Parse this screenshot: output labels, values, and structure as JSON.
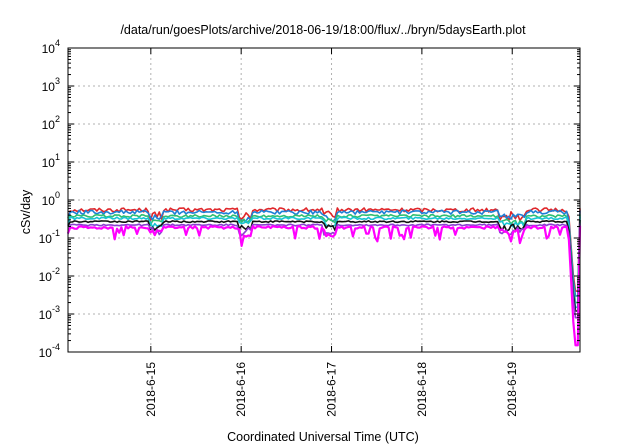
{
  "chart_data": {
    "type": "line",
    "title": "/data/run/goesPlots/archive/2018-06-19/18:00/flux/../bryn/5daysEarth.plot",
    "xlabel": "Coordinated Universal Time (UTC)",
    "ylabel": "cSv/day",
    "yscale": "log",
    "ylim": [
      0.0001,
      10000
    ],
    "xlim": [
      "2018-06-14 02:00",
      "2018-06-19 18:00"
    ],
    "grid": true,
    "legend": "none",
    "x_ticks": [
      "2018-6-15",
      "2018-6-16",
      "2018-6-17",
      "2018-6-18",
      "2018-6-19"
    ],
    "y_ticks": [
      {
        "base": "10",
        "exp": "-4"
      },
      {
        "base": "10",
        "exp": "-3"
      },
      {
        "base": "10",
        "exp": "-2"
      },
      {
        "base": "10",
        "exp": "-1"
      },
      {
        "base": "10",
        "exp": "0"
      },
      {
        "base": "10",
        "exp": "1"
      },
      {
        "base": "10",
        "exp": "2"
      },
      {
        "base": "10",
        "exp": "3"
      },
      {
        "base": "10",
        "exp": "4"
      }
    ],
    "series": [
      {
        "color": "#e0262a",
        "base": 0.55,
        "noise": 0.12,
        "dip": 0.5,
        "end": 0.004
      },
      {
        "color": "#1e7fd6",
        "base": 0.48,
        "noise": 0.12,
        "dip": 0.45,
        "end": 0.003
      },
      {
        "color": "#2fbf71",
        "base": 0.38,
        "noise": 0.08,
        "dip": 0.3,
        "end": 0.002
      },
      {
        "color": "#19c4d4",
        "base": 0.33,
        "noise": 0.07,
        "dip": 0.25,
        "end": 0.0015
      },
      {
        "color": "#111111",
        "base": 0.27,
        "noise": 0.05,
        "dip": 0.2,
        "end": 0.0012
      },
      {
        "color": "#8b3fd1",
        "base": 0.22,
        "noise": 0.05,
        "dip": 0.18,
        "end": 0.0008
      },
      {
        "color": "#ff00ff",
        "base": 0.19,
        "noise": 0.08,
        "dip": 0.12,
        "end": 0.00015
      }
    ]
  }
}
